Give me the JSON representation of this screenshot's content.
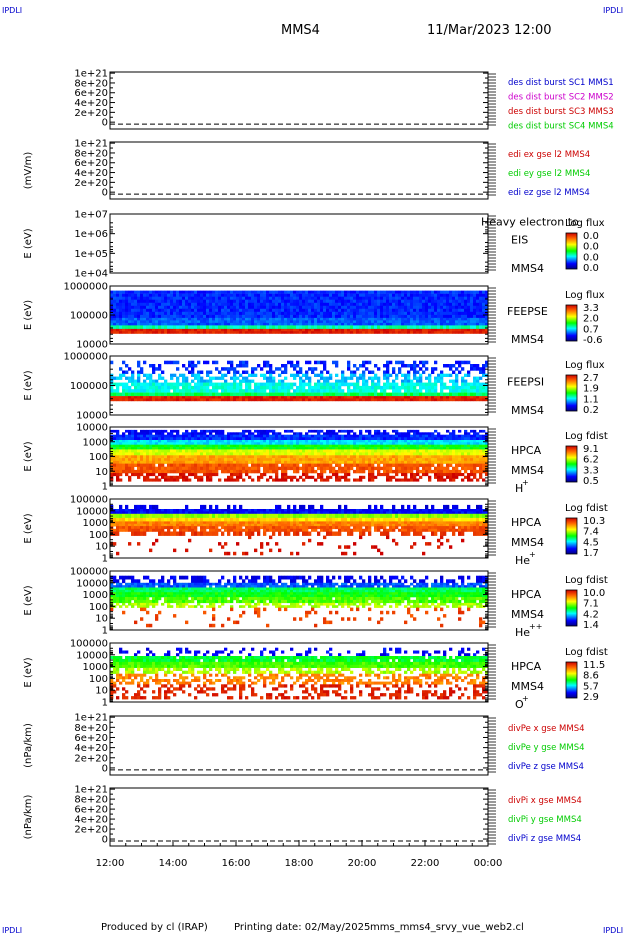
{
  "header": {
    "corner_tl": "IPDLI",
    "corner_tr": "IPDLI",
    "corner_bl": "IPDLI",
    "corner_br": "IPDLI",
    "spacecraft": "MMS4",
    "datetime": "11/Mar/2023 12:00"
  },
  "footer": {
    "produced_by": "Produced by cl (IRAP)",
    "print_date": "Printing date: 02/May/2025",
    "script_name": "mms_mms4_srvy_vue_web2.cl"
  },
  "colors": {
    "series_blue": "#0000cc",
    "series_magenta": "#cc00cc",
    "series_red": "#cc0000",
    "series_green": "#00cc00",
    "frame": "#000000"
  },
  "chart_data": [
    {
      "type": "line",
      "id": "dist_burst",
      "ylabel": "",
      "yticks": [
        "1e+21",
        "8e+20",
        "6e+20",
        "4e+20",
        "2e+20",
        "0"
      ],
      "legend": [
        {
          "label": "des dist burst SC1 MMS1",
          "color": "#0000cc"
        },
        {
          "label": "des dist burst SC2 MMS2",
          "color": "#cc00cc"
        },
        {
          "label": "des dist burst SC3 MMS3",
          "color": "#cc0000"
        },
        {
          "label": "des dist burst SC4 MMS4",
          "color": "#00cc00"
        }
      ]
    },
    {
      "type": "line",
      "id": "edi_e",
      "ylabel": "(mV/m)",
      "yticks": [
        "1e+21",
        "8e+20",
        "6e+20",
        "4e+20",
        "2e+20",
        "0"
      ],
      "legend": [
        {
          "label": "edi ex gse l2 MMS4",
          "color": "#cc0000"
        },
        {
          "label": "edi ey gse l2 MMS4",
          "color": "#00cc00"
        },
        {
          "label": "edi ez gse l2 MMS4",
          "color": "#0000cc"
        }
      ]
    },
    {
      "type": "heatmap",
      "id": "eis",
      "ylabel": "E (eV)",
      "yticks": [
        "1e+07",
        "1e+06",
        "1e+05",
        "1e+04"
      ],
      "instrument": "EIS",
      "instrument_note": "Heavy electron to",
      "spacecraft": "MMS4",
      "colorbar_title": "Log flux",
      "colorbar_ticks": [
        "0.0",
        "0.0",
        "0.0",
        "0.0"
      ]
    },
    {
      "type": "heatmap",
      "id": "feepse",
      "ylabel": "E (eV)",
      "yticks": [
        "1000000",
        "100000",
        "10000"
      ],
      "instrument": "FEEPSE",
      "spacecraft": "MMS4",
      "colorbar_title": "Log flux",
      "colorbar_ticks": [
        "3.3",
        "2.0",
        "0.7",
        "-0.6"
      ]
    },
    {
      "type": "heatmap",
      "id": "feepsi",
      "ylabel": "E (eV)",
      "yticks": [
        "1000000",
        "100000",
        "10000"
      ],
      "instrument": "FEEPSI",
      "spacecraft": "MMS4",
      "colorbar_title": "Log flux",
      "colorbar_ticks": [
        "2.7",
        "1.9",
        "1.1",
        "0.2"
      ]
    },
    {
      "type": "heatmap",
      "id": "hpca_h",
      "ylabel": "E (eV)",
      "yticks": [
        "10000",
        "1000",
        "100",
        "10",
        "1"
      ],
      "instrument": "HPCA",
      "spacecraft": "MMS4",
      "species": "H",
      "species_charge": "+",
      "colorbar_title": "Log fdist",
      "colorbar_ticks": [
        "9.1",
        "6.2",
        "3.3",
        "0.5"
      ]
    },
    {
      "type": "heatmap",
      "id": "hpca_he",
      "ylabel": "E (eV)",
      "yticks": [
        "100000",
        "10000",
        "1000",
        "100",
        "10",
        "1"
      ],
      "instrument": "HPCA",
      "spacecraft": "MMS4",
      "species": "He",
      "species_charge": "+",
      "colorbar_title": "Log fdist",
      "colorbar_ticks": [
        "10.3",
        "7.4",
        "4.5",
        "1.7"
      ]
    },
    {
      "type": "heatmap",
      "id": "hpca_hepp",
      "ylabel": "E (eV)",
      "yticks": [
        "100000",
        "10000",
        "1000",
        "100",
        "10",
        "1"
      ],
      "instrument": "HPCA",
      "spacecraft": "MMS4",
      "species": "He",
      "species_charge": "++",
      "colorbar_title": "Log fdist",
      "colorbar_ticks": [
        "10.0",
        "7.1",
        "4.2",
        "1.4"
      ]
    },
    {
      "type": "heatmap",
      "id": "hpca_o",
      "ylabel": "E (eV)",
      "yticks": [
        "100000",
        "10000",
        "1000",
        "100",
        "10",
        "1"
      ],
      "instrument": "HPCA",
      "spacecraft": "MMS4",
      "species": "O",
      "species_charge": "+",
      "colorbar_title": "Log fdist",
      "colorbar_ticks": [
        "11.5",
        "8.6",
        "5.7",
        "2.9"
      ]
    },
    {
      "type": "line",
      "id": "divpe",
      "ylabel": "(nPa/km)",
      "yticks": [
        "1e+21",
        "8e+20",
        "6e+20",
        "4e+20",
        "2e+20",
        "0"
      ],
      "legend": [
        {
          "label": "divPe x gse MMS4",
          "color": "#cc0000"
        },
        {
          "label": "divPe y gse MMS4",
          "color": "#00cc00"
        },
        {
          "label": "divPe z gse MMS4",
          "color": "#0000cc"
        }
      ]
    },
    {
      "type": "line",
      "id": "divpi",
      "ylabel": "(nPa/km)",
      "yticks": [
        "1e+21",
        "8e+20",
        "6e+20",
        "4e+20",
        "2e+20",
        "0"
      ],
      "legend": [
        {
          "label": "divPi x gse MMS4",
          "color": "#cc0000"
        },
        {
          "label": "divPi y gse MMS4",
          "color": "#00cc00"
        },
        {
          "label": "divPi z gse MMS4",
          "color": "#0000cc"
        }
      ]
    }
  ],
  "time_axis": {
    "ticks": [
      "12:00",
      "14:00",
      "16:00",
      "18:00",
      "20:00",
      "22:00",
      "00:00"
    ]
  }
}
